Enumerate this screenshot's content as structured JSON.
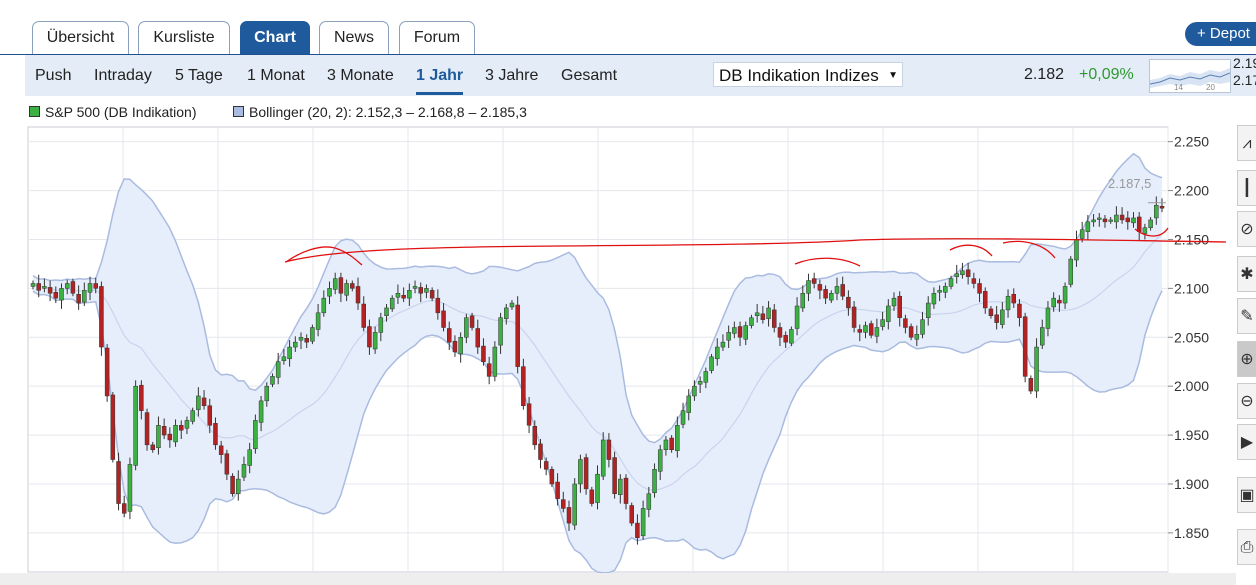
{
  "tabs": [
    {
      "label": "Übersicht",
      "active": false
    },
    {
      "label": "Kursliste",
      "active": false
    },
    {
      "label": "Chart",
      "active": true
    },
    {
      "label": "News",
      "active": false
    },
    {
      "label": "Forum",
      "active": false
    }
  ],
  "depot_button": "+ Depot",
  "nav": [
    {
      "label": "Push",
      "active": false
    },
    {
      "label": "Intraday",
      "active": false
    },
    {
      "label": "5 Tage",
      "active": false
    },
    {
      "label": "1 Monat",
      "active": false
    },
    {
      "label": "3 Monate",
      "active": false
    },
    {
      "label": "1 Jahr",
      "active": true
    },
    {
      "label": "3 Jahre",
      "active": false
    },
    {
      "label": "Gesamt",
      "active": false
    }
  ],
  "source_select": "DB Indikation Indizes",
  "quote": {
    "price": "2.182",
    "change": "+0,09%",
    "change_color": "#2e9a2e"
  },
  "spark": {
    "top_label": "2.19",
    "bottom_label": "2.17",
    "tick_a": "14",
    "tick_b": "20"
  },
  "legend": [
    {
      "label": "S&P 500 (DB Indikation)",
      "color": "#3cb043"
    },
    {
      "label": "Bollinger (20, 2): 2.152,3 – 2.168,8 – 2.185,3",
      "color": "#a9bbe0"
    }
  ],
  "chart_data": {
    "type": "candlestick",
    "series_name": "S&P 500 (DB Indikation)",
    "y_ticks": [
      "2.250",
      "2.200",
      "2.150",
      "2.100",
      "2.050",
      "2.000",
      "1.950",
      "1.900",
      "1.850"
    ],
    "y_tick_values": [
      2250,
      2200,
      2150,
      2100,
      2050,
      2000,
      1950,
      1900,
      1850
    ],
    "ylim": [
      1810,
      2265
    ],
    "max_annotation": "2.187,5",
    "max_value": 2187.5,
    "bollinger": {
      "period": 20,
      "k": 2,
      "lower": 2152.3,
      "middle": 2168.8,
      "upper": 2185.3
    },
    "close": [
      2105,
      2098,
      2102,
      2095,
      2090,
      2100,
      2105,
      2095,
      2085,
      2098,
      2105,
      2100,
      2040,
      1990,
      1925,
      1880,
      1870,
      1920,
      2000,
      1975,
      1940,
      1935,
      1960,
      1950,
      1945,
      1960,
      1955,
      1965,
      1975,
      1990,
      1980,
      1960,
      1940,
      1930,
      1910,
      1890,
      1905,
      1920,
      1935,
      1965,
      1985,
      2000,
      2010,
      2025,
      2030,
      2040,
      2045,
      2050,
      2045,
      2060,
      2075,
      2090,
      2100,
      2110,
      2095,
      2105,
      2100,
      2085,
      2060,
      2040,
      2055,
      2070,
      2080,
      2090,
      2095,
      2090,
      2098,
      2102,
      2095,
      2100,
      2090,
      2075,
      2060,
      2045,
      2035,
      2050,
      2070,
      2060,
      2040,
      2025,
      2010,
      2040,
      2070,
      2080,
      2085,
      2020,
      1980,
      1960,
      1940,
      1925,
      1915,
      1900,
      1885,
      1875,
      1860,
      1900,
      1925,
      1895,
      1880,
      1910,
      1945,
      1925,
      1890,
      1905,
      1880,
      1860,
      1845,
      1875,
      1890,
      1915,
      1935,
      1945,
      1935,
      1960,
      1975,
      1990,
      2000,
      2005,
      2015,
      2030,
      2040,
      2045,
      2055,
      2060,
      2050,
      2062,
      2070,
      2075,
      2068,
      2080,
      2060,
      2050,
      2045,
      2058,
      2082,
      2095,
      2108,
      2105,
      2098,
      2090,
      2095,
      2102,
      2092,
      2080,
      2060,
      2055,
      2062,
      2052,
      2060,
      2068,
      2082,
      2090,
      2070,
      2060,
      2050,
      2053,
      2068,
      2085,
      2095,
      2098,
      2102,
      2110,
      2115,
      2118,
      2112,
      2105,
      2095,
      2080,
      2072,
      2065,
      2078,
      2092,
      2085,
      2070,
      2010,
      1995,
      2040,
      2060,
      2080,
      2090,
      2085,
      2102,
      2130,
      2150,
      2160,
      2168,
      2170,
      2172,
      2168,
      2170,
      2175,
      2170,
      2168,
      2172,
      2158,
      2162,
      2170,
      2185,
      2182
    ]
  },
  "toolbar": [
    "line-chart-icon",
    "candlestick-icon",
    "indicator-icon",
    "settings-icon",
    "draw-icon",
    "zoom-in-icon",
    "zoom-out-icon",
    "play-icon",
    "save-icon",
    "print-icon"
  ]
}
